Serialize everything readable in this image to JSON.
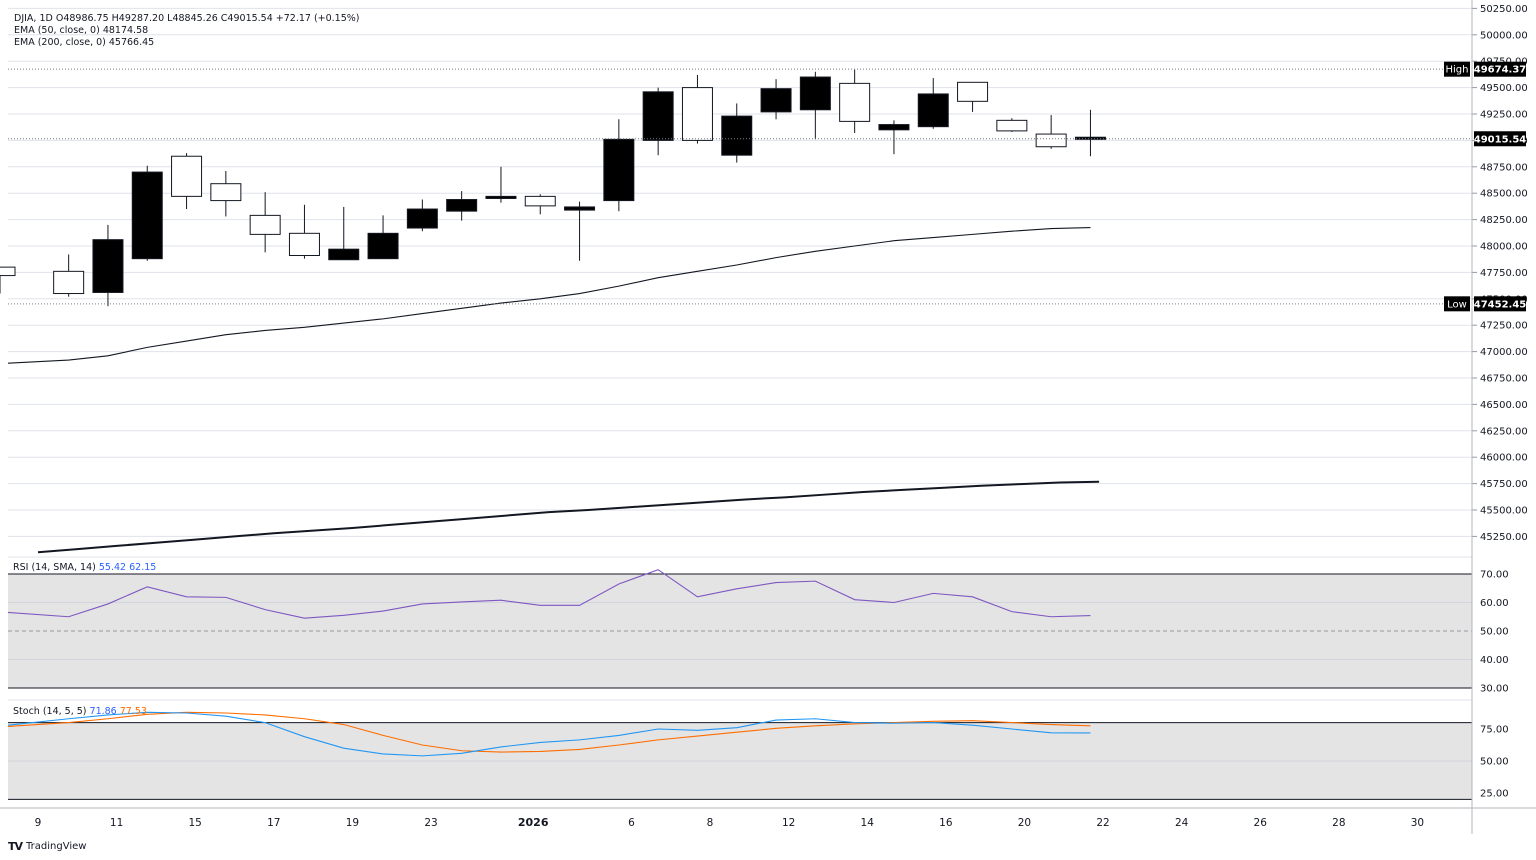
{
  "header": {
    "symbol_line": "DJIA, 1D  O48986.75  H49287.20  L48845.26  C49015.54  +72.17 (+0.15%)",
    "ema50_line": "EMA (50, close, 0)  48174.58",
    "ema200_line": "EMA (200, close, 0)  45766.45"
  },
  "rsi_panel": {
    "label": "RSI (14, SMA, 14)",
    "value": "55.42",
    "sma_value": "62.15"
  },
  "stoch_panel": {
    "label": "Stoch (14, 5, 5)",
    "k_value": "71.86",
    "d_value": "77.53"
  },
  "markers": {
    "high": {
      "label": "High",
      "value": "49674.37"
    },
    "low": {
      "label": "Low",
      "value": "47452.45"
    },
    "last": {
      "value": "49015.54"
    }
  },
  "branding": {
    "name": "TradingView"
  },
  "colors": {
    "rsi": "#7e57c2",
    "stoch_k": "#2196f3",
    "stoch_d": "#ff6d00",
    "grid": "#e0e3eb",
    "text": "#131722",
    "band_fill": "#e4e4e4"
  },
  "chart_data": [
    {
      "type": "candlestick",
      "symbol": "DJIA",
      "interval": "1D",
      "price_axis": {
        "ylim": [
          45000,
          50250
        ],
        "ticks": [
          "50250.00",
          "50000.00",
          "49750.00",
          "49500.00",
          "49250.00",
          "49000.00",
          "48750.00",
          "48500.00",
          "48250.00",
          "48000.00",
          "47750.00",
          "47500.00",
          "47250.00",
          "47000.00",
          "46750.00",
          "46500.00",
          "46250.00",
          "46000.00",
          "45750.00",
          "45500.00",
          "45250.00"
        ]
      },
      "x_axis": {
        "ticks": [
          "9",
          "11",
          "15",
          "17",
          "19",
          "23",
          "2026",
          "6",
          "8",
          "12",
          "14",
          "16",
          "20",
          "22",
          "24",
          "26",
          "28",
          "30"
        ]
      },
      "candles": [
        {
          "o": 47720,
          "h": 47800,
          "l": 47550,
          "c": 47800
        },
        {
          "o": 47550,
          "h": 47920,
          "l": 47520,
          "c": 47760
        },
        {
          "o": 48060,
          "h": 48200,
          "l": 47430,
          "c": 47560
        },
        {
          "o": 48700,
          "h": 48760,
          "l": 47860,
          "c": 47880
        },
        {
          "o": 48470,
          "h": 48880,
          "l": 48350,
          "c": 48850
        },
        {
          "o": 48430,
          "h": 48710,
          "l": 48280,
          "c": 48590
        },
        {
          "o": 48110,
          "h": 48510,
          "l": 47940,
          "c": 48290
        },
        {
          "o": 47910,
          "h": 48390,
          "l": 47880,
          "c": 48120
        },
        {
          "o": 47970,
          "h": 48370,
          "l": 47870,
          "c": 47870
        },
        {
          "o": 48120,
          "h": 48290,
          "l": 47880,
          "c": 47880
        },
        {
          "o": 48350,
          "h": 48440,
          "l": 48140,
          "c": 48170
        },
        {
          "o": 48440,
          "h": 48520,
          "l": 48240,
          "c": 48330
        },
        {
          "o": 48470,
          "h": 48750,
          "l": 48410,
          "c": 48450
        },
        {
          "o": 48380,
          "h": 48490,
          "l": 48300,
          "c": 48470
        },
        {
          "o": 48370,
          "h": 48420,
          "l": 47860,
          "c": 48340
        },
        {
          "o": 49010,
          "h": 49200,
          "l": 48330,
          "c": 48430
        },
        {
          "o": 49460,
          "h": 49500,
          "l": 48860,
          "c": 49000
        },
        {
          "o": 49000,
          "h": 49620,
          "l": 48970,
          "c": 49500
        },
        {
          "o": 49230,
          "h": 49350,
          "l": 48790,
          "c": 48860
        },
        {
          "o": 49490,
          "h": 49580,
          "l": 49200,
          "c": 49270
        },
        {
          "o": 49600,
          "h": 49650,
          "l": 49010,
          "c": 49290
        },
        {
          "o": 49180,
          "h": 49670,
          "l": 49070,
          "c": 49540
        },
        {
          "o": 49150,
          "h": 49190,
          "l": 48870,
          "c": 49100
        },
        {
          "o": 49440,
          "h": 49590,
          "l": 49110,
          "c": 49130
        },
        {
          "o": 49370,
          "h": 49550,
          "l": 49270,
          "c": 49550
        },
        {
          "o": 49090,
          "h": 49210,
          "l": 49080,
          "c": 49190
        },
        {
          "o": 48940,
          "h": 49240,
          "l": 48920,
          "c": 49060
        },
        {
          "o": 49030,
          "h": 49290,
          "l": 48850,
          "c": 49010
        }
      ],
      "ema50": [
        46890,
        46920,
        46960,
        47040,
        47100,
        47160,
        47200,
        47230,
        47270,
        47310,
        47360,
        47410,
        47460,
        47500,
        47550,
        47620,
        47700,
        47760,
        47820,
        47890,
        47950,
        48000,
        48050,
        48080,
        48110,
        48140,
        48165,
        48175
      ],
      "ema200": [
        45100,
        45130,
        45160,
        45190,
        45220,
        45250,
        45280,
        45305,
        45330,
        45360,
        45390,
        45420,
        45450,
        45480,
        45500,
        45525,
        45550,
        45575,
        45600,
        45620,
        45645,
        45670,
        45690,
        45710,
        45730,
        45745,
        45760,
        45767
      ],
      "high": 49674.37,
      "low": 47452.45,
      "last": 49015.54
    },
    {
      "type": "line",
      "name": "RSI (14, SMA, 14)",
      "ylim": [
        25,
        75
      ],
      "ticks": [
        "70.00",
        "60.00",
        "50.00",
        "40.00",
        "30.00"
      ],
      "bands": [
        30,
        50,
        70
      ],
      "rsi": [
        56.5,
        55,
        59.5,
        65.5,
        62,
        61.8,
        57.5,
        54.5,
        55.5,
        57,
        59.5,
        60.2,
        60.8,
        59,
        59,
        66.5,
        71.5,
        62,
        64.8,
        67,
        67.5,
        61,
        60,
        63.2,
        62,
        56.8,
        55,
        55.4
      ]
    },
    {
      "type": "line",
      "name": "Stoch (14, 5, 5)",
      "ylim": [
        18,
        100
      ],
      "ticks": [
        "75.00",
        "50.00",
        "25.00"
      ],
      "bands": [
        20,
        80
      ],
      "k": [
        78,
        83,
        86,
        88,
        87.5,
        85,
        80,
        69,
        60,
        55.5,
        54,
        56,
        61,
        64.5,
        66.5,
        70,
        75,
        74,
        76,
        82,
        83,
        80,
        79.5,
        80,
        78,
        75,
        72,
        71.9
      ],
      "d": [
        77,
        80,
        83,
        86.5,
        88,
        87.5,
        86,
        83,
        78.5,
        70,
        62.5,
        58,
        57,
        57.5,
        59,
        62.5,
        66.5,
        69.5,
        72.5,
        75.5,
        77.5,
        79,
        80,
        81,
        81.5,
        80,
        78.5,
        77.5
      ]
    }
  ]
}
